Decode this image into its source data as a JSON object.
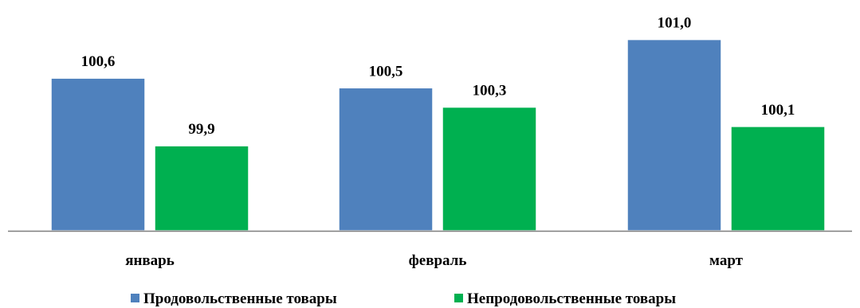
{
  "chart_data": {
    "type": "bar",
    "categories": [
      "январь",
      "февраль",
      "март"
    ],
    "series": [
      {
        "name": "Продовольственные товары",
        "values": [
          100.6,
          100.5,
          101.0
        ],
        "color": "#4f81bd"
      },
      {
        "name": "Непродовольственные товары",
        "values": [
          99.9,
          100.3,
          100.1
        ],
        "color": "#00b050"
      }
    ],
    "value_labels": [
      [
        "100,6",
        "100,5",
        "101,0"
      ],
      [
        "99,9",
        "100,3",
        "100,1"
      ]
    ],
    "ylim": [
      99.0,
      101.2
    ],
    "grid": false,
    "legend_position": "bottom"
  }
}
